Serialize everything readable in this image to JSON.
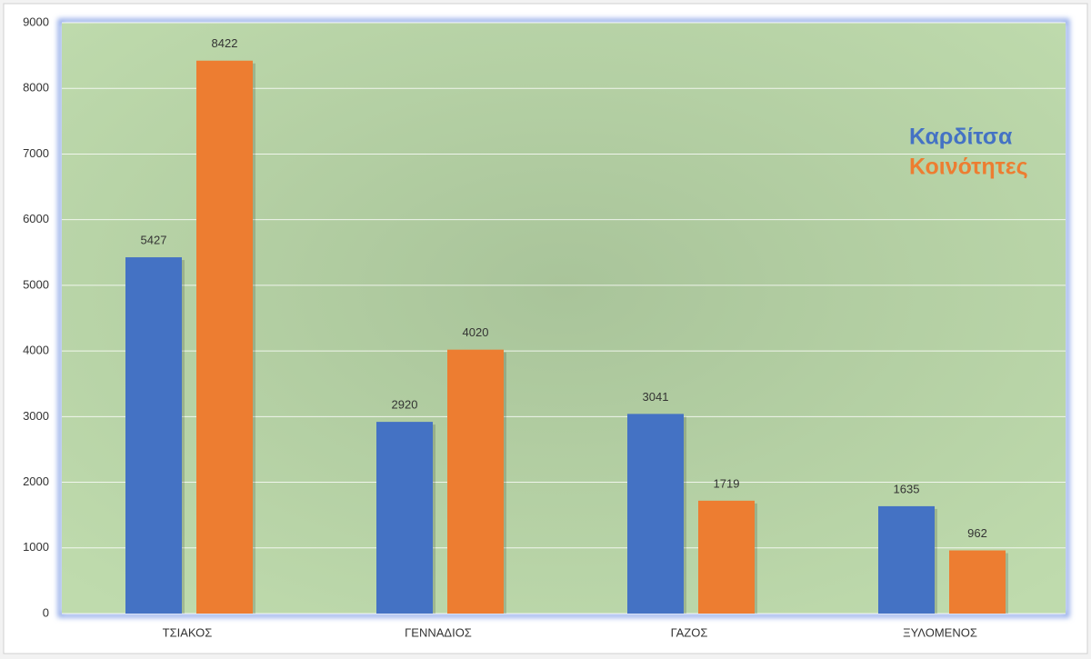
{
  "chart_data": {
    "type": "bar",
    "categories": [
      "ΤΣΙΑΚΟΣ",
      "ΓΕΝΝΑΔΙΟΣ",
      "ΓΑΖΟΣ",
      "ΞΥΛΟΜΕΝΟΣ"
    ],
    "series": [
      {
        "name": "Καρδίτσα",
        "color": "#4472c4",
        "values": [
          5427,
          2920,
          3041,
          1635
        ]
      },
      {
        "name": "Κοινότητες",
        "color": "#ed7d31",
        "values": [
          8422,
          4020,
          1719,
          962
        ]
      }
    ],
    "ylim": [
      0,
      9000
    ],
    "yticks": [
      0,
      1000,
      2000,
      3000,
      4000,
      5000,
      6000,
      7000,
      8000,
      9000
    ],
    "grid": true,
    "legend": "top-right"
  }
}
